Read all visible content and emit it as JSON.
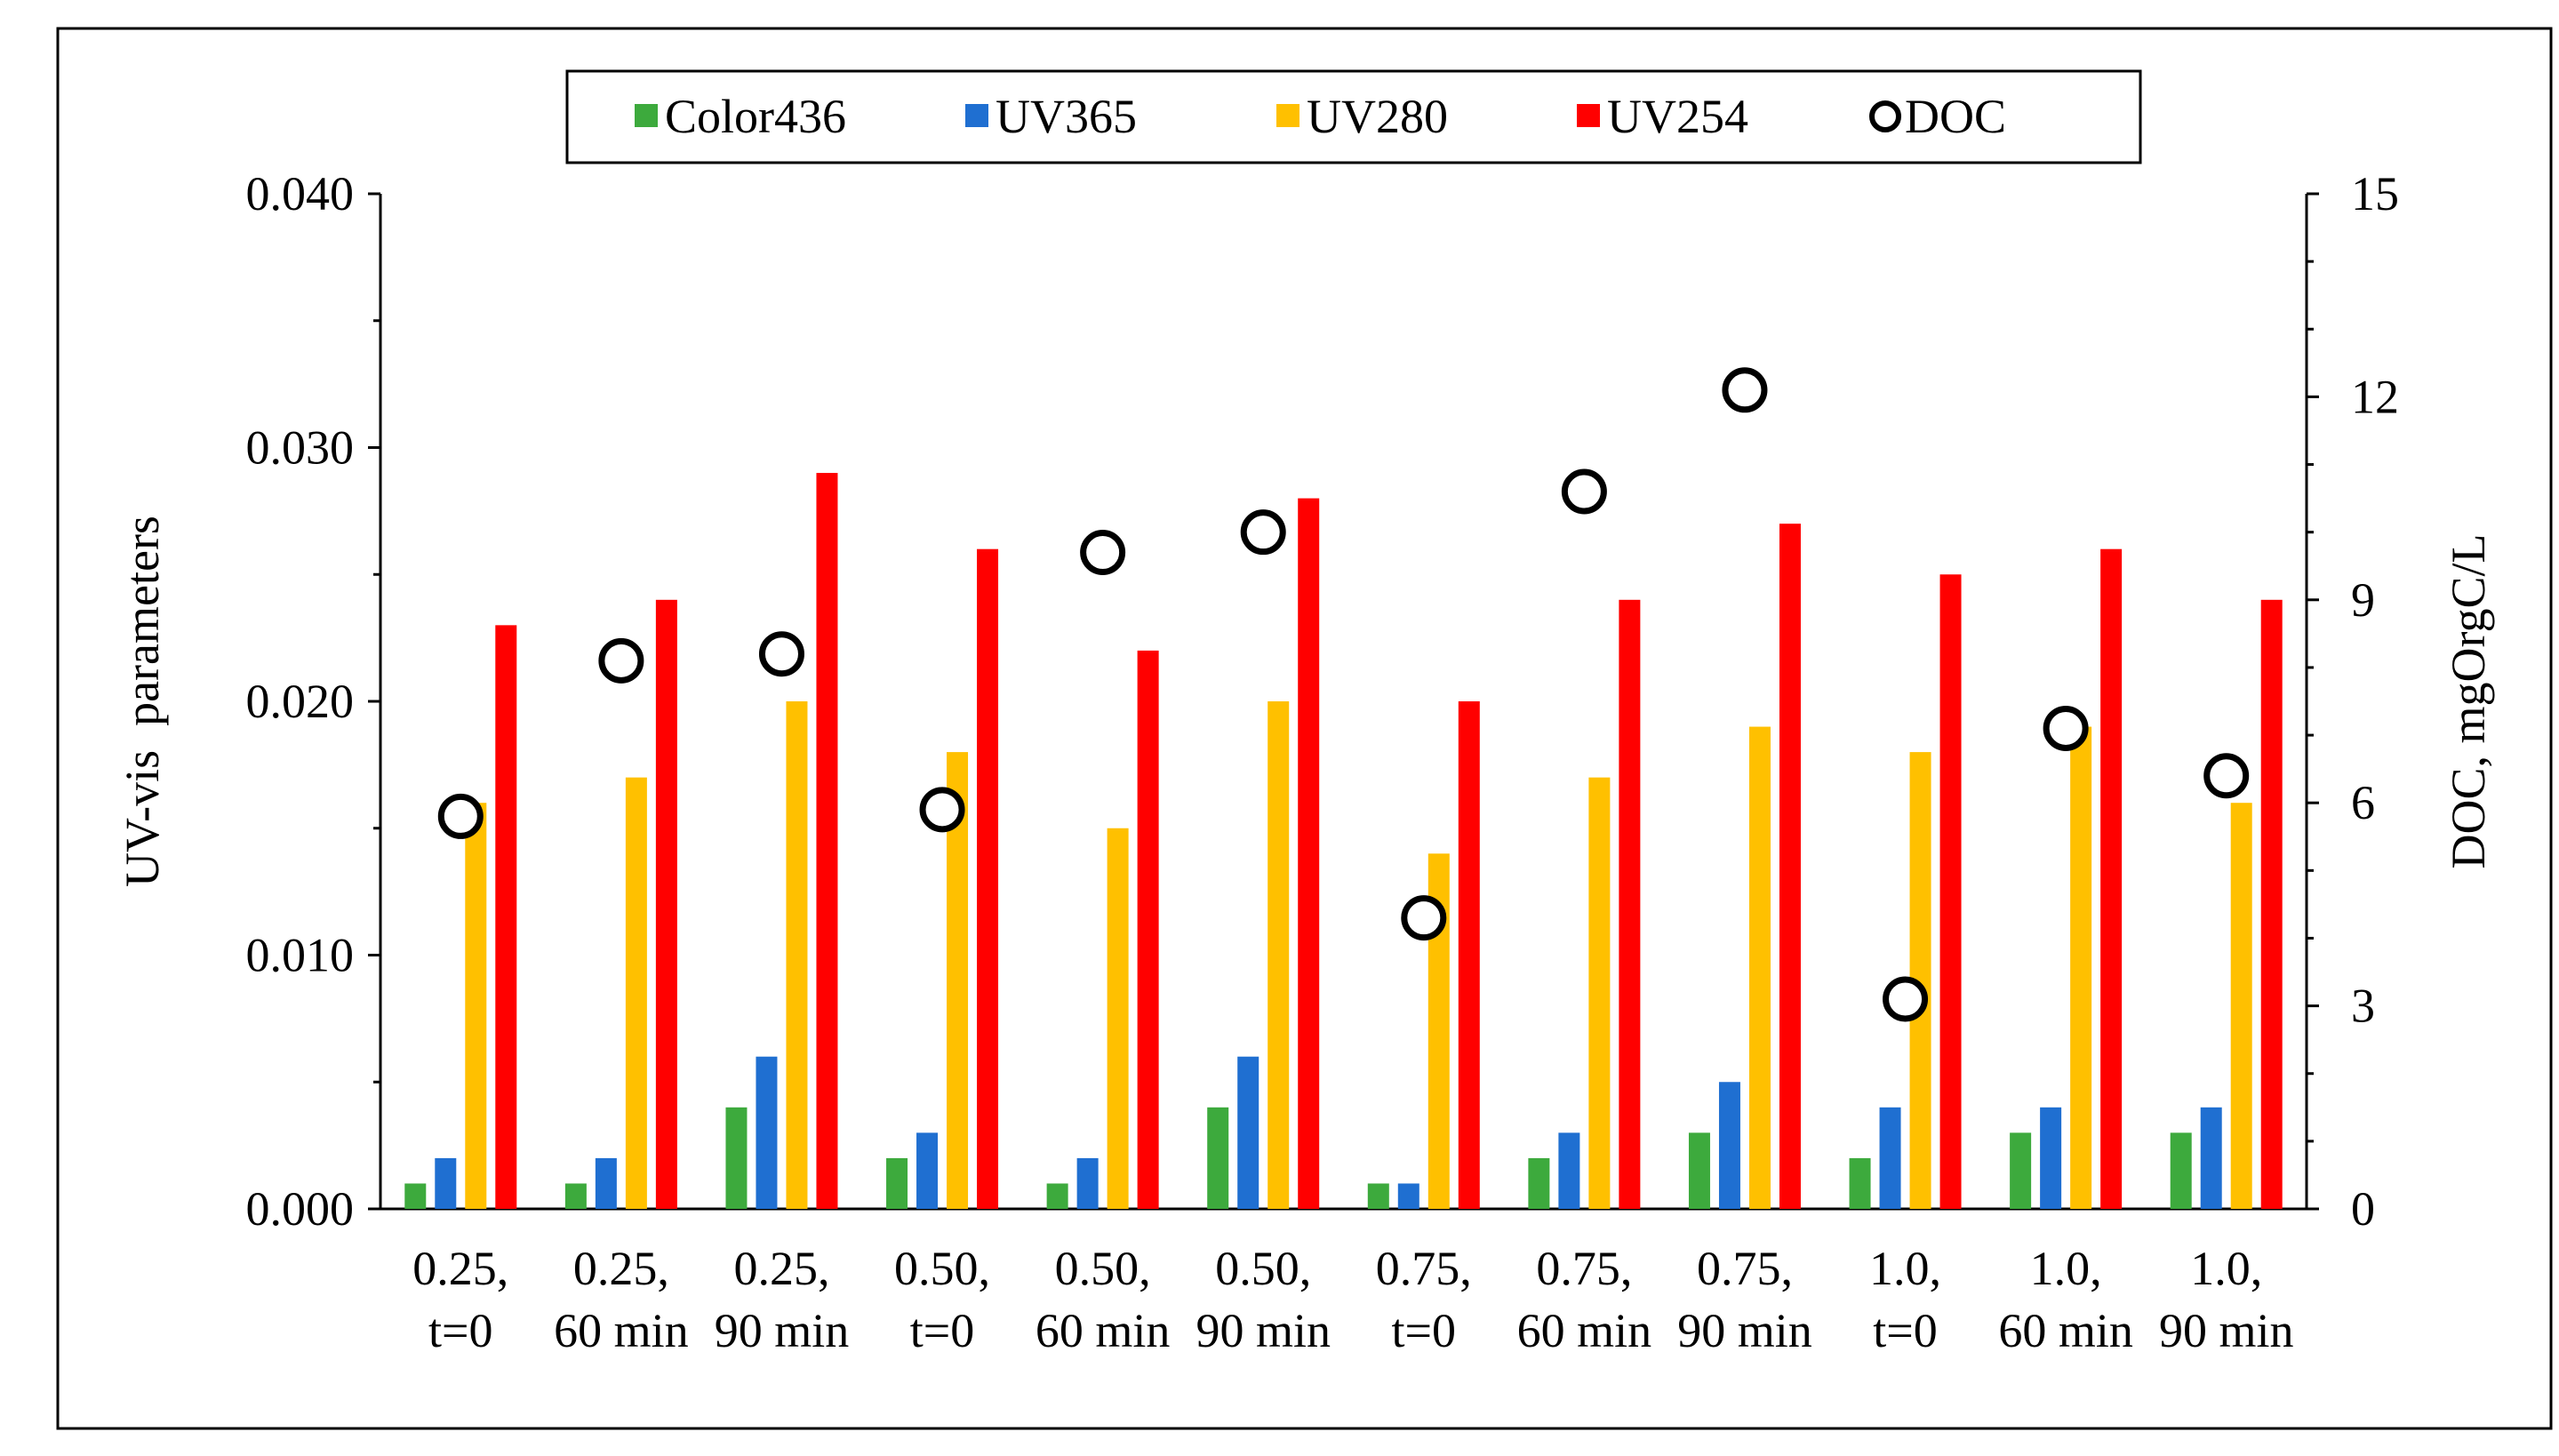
{
  "chart_data": {
    "type": "bar",
    "categories": [
      [
        "0.25,",
        "t=0"
      ],
      [
        "0.25,",
        "60 min"
      ],
      [
        "0.25,",
        "90 min"
      ],
      [
        "0.50,",
        "t=0"
      ],
      [
        "0.50,",
        "60 min"
      ],
      [
        "0.50,",
        "90 min"
      ],
      [
        "0.75,",
        "t=0"
      ],
      [
        "0.75,",
        "60 min"
      ],
      [
        "0.75,",
        "90 min"
      ],
      [
        "1.0,",
        "t=0"
      ],
      [
        "1.0,",
        "60 min"
      ],
      [
        "1.0,",
        "90 min"
      ]
    ],
    "series": [
      {
        "name": "Color436",
        "color": "#3daa3d",
        "axis": "left",
        "kind": "bar",
        "values": [
          0.001,
          0.001,
          0.004,
          0.002,
          0.001,
          0.004,
          0.001,
          0.002,
          0.003,
          0.002,
          0.003,
          0.003
        ]
      },
      {
        "name": "UV365",
        "color": "#1f6fd1",
        "axis": "left",
        "kind": "bar",
        "values": [
          0.002,
          0.002,
          0.006,
          0.003,
          0.002,
          0.006,
          0.001,
          0.003,
          0.005,
          0.004,
          0.004,
          0.004
        ]
      },
      {
        "name": "UV280",
        "color": "#ffc000",
        "axis": "left",
        "kind": "bar",
        "values": [
          0.016,
          0.017,
          0.02,
          0.018,
          0.015,
          0.02,
          0.014,
          0.017,
          0.019,
          0.018,
          0.019,
          0.016
        ]
      },
      {
        "name": "UV254",
        "color": "#ff0000",
        "axis": "left",
        "kind": "bar",
        "values": [
          0.023,
          0.024,
          0.029,
          0.026,
          0.022,
          0.028,
          0.02,
          0.024,
          0.027,
          0.025,
          0.026,
          0.024
        ]
      },
      {
        "name": "DOC",
        "color": "#000000",
        "axis": "right",
        "kind": "marker",
        "values": [
          5.8,
          8.1,
          8.2,
          5.9,
          9.7,
          10.0,
          4.3,
          10.6,
          12.1,
          3.1,
          7.1,
          6.4
        ]
      }
    ],
    "ylabel": "UV-vis  parameters",
    "ylabel_right": "DOC, mgOrgC/L",
    "ylim": [
      0,
      0.04
    ],
    "ylim_right": [
      0,
      15
    ],
    "yticks": [
      "0.000",
      "0.010",
      "0.020",
      "0.030",
      "0.040"
    ],
    "yticks_right": [
      "0",
      "3",
      "6",
      "9",
      "12",
      "15"
    ],
    "legend_position": "top-center",
    "grid": false
  }
}
